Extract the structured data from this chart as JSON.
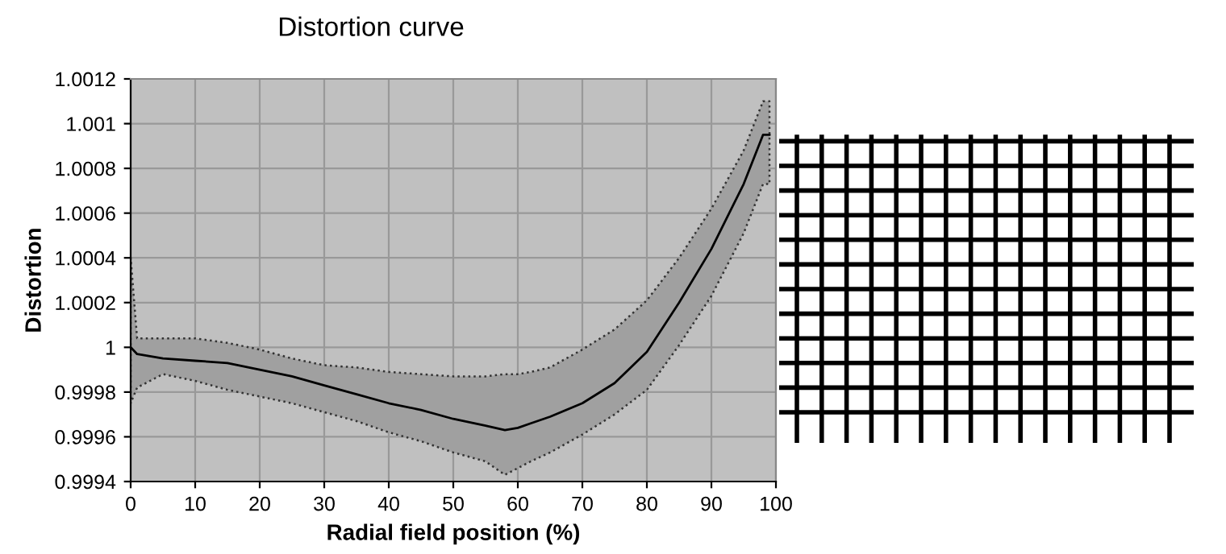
{
  "chart_data": {
    "type": "line",
    "title": "Distortion curve",
    "xlabel": "Radial field position (%)",
    "ylabel": "Distortion",
    "x": [
      0,
      1,
      5,
      10,
      15,
      20,
      25,
      30,
      35,
      40,
      45,
      50,
      55,
      58,
      60,
      62,
      65,
      70,
      75,
      80,
      85,
      90,
      95,
      98,
      99
    ],
    "series": [
      {
        "color": "#000000",
        "values": [
          1.0,
          0.99997,
          0.99995,
          0.99994,
          0.99993,
          0.9999,
          0.99987,
          0.99983,
          0.99979,
          0.99975,
          0.99972,
          0.99968,
          0.99965,
          0.99963,
          0.99964,
          0.99966,
          0.99969,
          0.99975,
          0.99984,
          0.99998,
          1.0002,
          1.00044,
          1.00073,
          1.00095,
          1.00095
        ],
        "upper": [
          1.0004,
          1.00004,
          1.00004,
          1.00004,
          1.00002,
          0.99999,
          0.99995,
          0.99992,
          0.99991,
          0.99989,
          0.99988,
          0.99987,
          0.99987,
          0.99988,
          0.99988,
          0.99989,
          0.99991,
          0.99999,
          1.00008,
          1.00021,
          1.0004,
          1.00062,
          1.00088,
          1.0011,
          1.0011
        ],
        "lower": [
          0.99975,
          0.99982,
          0.99988,
          0.99985,
          0.99981,
          0.99978,
          0.99975,
          0.99971,
          0.99967,
          0.99962,
          0.99958,
          0.99953,
          0.99949,
          0.99943,
          0.99946,
          0.99949,
          0.99953,
          0.99961,
          0.9997,
          0.99981,
          1.00001,
          1.00023,
          1.00051,
          1.00073,
          1.00073
        ]
      }
    ],
    "xlim": [
      0,
      100
    ],
    "xticks": [
      0,
      10,
      20,
      30,
      40,
      50,
      60,
      70,
      80,
      90,
      100
    ],
    "ylim": [
      0.9994,
      1.0012
    ],
    "yticks": [
      {
        "value": 0.9994,
        "label": "0.9994"
      },
      {
        "value": 0.9996,
        "label": "0.9996"
      },
      {
        "value": 0.9998,
        "label": "0.9998"
      },
      {
        "value": 1,
        "label": "1"
      },
      {
        "value": 1.0002,
        "label": "1.0002"
      },
      {
        "value": 1.0004,
        "label": "1.0004"
      },
      {
        "value": 1.0006,
        "label": "1.0006"
      },
      {
        "value": 1.0008,
        "label": "1.0008"
      },
      {
        "value": 1.001,
        "label": "1.001"
      },
      {
        "value": 1.0012,
        "label": "1.0012"
      }
    ],
    "grid": true,
    "line_style": "solid",
    "marker": "none"
  }
}
